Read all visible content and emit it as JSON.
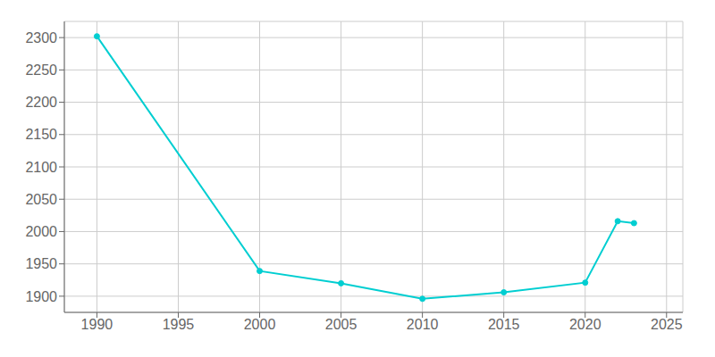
{
  "chart_data": {
    "type": "line",
    "x": [
      1990,
      2000,
      2005,
      2010,
      2015,
      2020,
      2022,
      2023
    ],
    "values": [
      2302,
      1939,
      1920,
      1896,
      1906,
      1921,
      2016,
      2013
    ],
    "color": "#00CED1",
    "marker": "circle",
    "xlim": [
      1988,
      2026
    ],
    "ylim": [
      1875,
      2325
    ],
    "xticks": [
      1990,
      1995,
      2000,
      2005,
      2010,
      2015,
      2020,
      2025
    ],
    "yticks": [
      1900,
      1950,
      2000,
      2050,
      2100,
      2150,
      2200,
      2250,
      2300
    ],
    "grid": true
  }
}
